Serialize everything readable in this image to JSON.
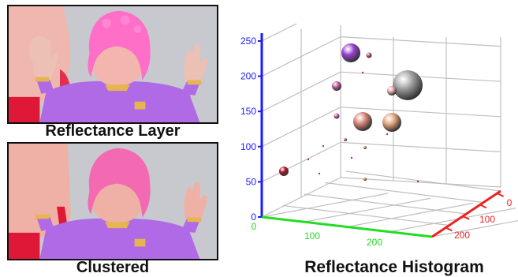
{
  "captions": {
    "top": "Reflectance Layer",
    "bottom": "Clustered",
    "histogram": "Reflectance Histogram"
  },
  "colors": {
    "background": "#c7c9cf",
    "skin": "#f0a9a4",
    "hat": "#ff6ec7",
    "shirt": "#b06ae6",
    "red": "#e01838",
    "axis_vertical": "#1a1aff",
    "axis_x": "#22dd22",
    "axis_depth": "#ee2222",
    "grid": "#bfbfbf"
  },
  "chart_data": {
    "type": "scatter",
    "subtype": "3d-bubble",
    "title": "Reflectance Histogram",
    "axes": {
      "vertical": {
        "ticks": [
          "0",
          "50",
          "100",
          "150",
          "200",
          "250"
        ],
        "color": "blue"
      },
      "horizontal": {
        "ticks": [
          "0",
          "100",
          "200"
        ],
        "color": "green"
      },
      "depth": {
        "ticks": [
          "0",
          "100",
          "200"
        ],
        "color": "red"
      }
    },
    "grid": true,
    "points": [
      {
        "color": "#9a3fd0",
        "size": "large"
      },
      {
        "color": "#a0a0a0",
        "size": "largest"
      },
      {
        "color": "#d8857a",
        "size": "large"
      },
      {
        "color": "#e2a37a",
        "size": "large"
      },
      {
        "color": "#c25a9f",
        "size": "medium"
      },
      {
        "color": "#e8a2a8",
        "size": "medium"
      },
      {
        "color": "#c25a9f",
        "size": "small"
      },
      {
        "color": "#b01028",
        "size": "medium"
      },
      {
        "color": "#c05090",
        "size": "small"
      },
      {
        "color": "#d27a4a",
        "size": "tiny"
      },
      {
        "color": "#d27a4a",
        "size": "tiny"
      },
      {
        "color": "#c05090",
        "size": "tiny"
      }
    ]
  }
}
